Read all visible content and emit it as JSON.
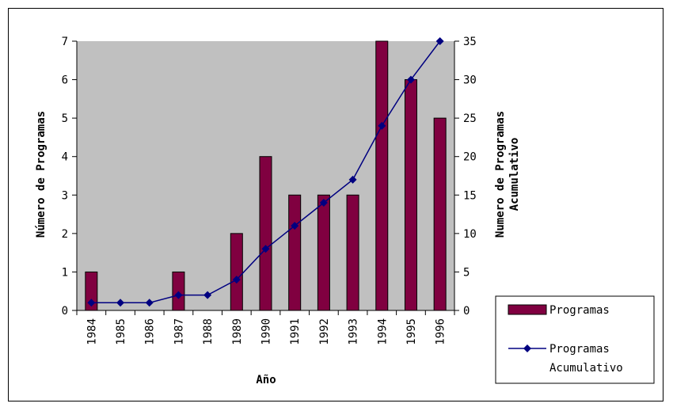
{
  "chart_data": {
    "type": "bar",
    "categories": [
      "1984",
      "1985",
      "1986",
      "1987",
      "1988",
      "1989",
      "1990",
      "1991",
      "1992",
      "1993",
      "1994",
      "1995",
      "1996"
    ],
    "series": [
      {
        "name": "Programas",
        "type": "bar",
        "axis": "left",
        "values": [
          1,
          0,
          0,
          1,
          0,
          2,
          4,
          3,
          3,
          3,
          7,
          6,
          5
        ]
      },
      {
        "name": "Programas Acumulativo",
        "type": "line",
        "axis": "right",
        "values": [
          1,
          1,
          1,
          2,
          2,
          4,
          8,
          11,
          14,
          17,
          24,
          30,
          35
        ]
      }
    ],
    "xlabel": "Año",
    "ylabel": "Número de Programas",
    "y2label_lines": [
      "Numero de Programas",
      "Acumulativo"
    ],
    "ylim": [
      0,
      7
    ],
    "y2lim": [
      0,
      35
    ],
    "yticks": [
      "0",
      "1",
      "2",
      "3",
      "4",
      "5",
      "6",
      "7"
    ],
    "y2ticks": [
      "0",
      "5",
      "10",
      "15",
      "20",
      "25",
      "30",
      "35"
    ],
    "legend": {
      "position": "right",
      "items": [
        {
          "label": "Programas"
        },
        {
          "label_lines": [
            "Programas",
            "Acumulativo"
          ]
        }
      ]
    },
    "colors": {
      "plot_background": "#c0c0c0",
      "bar_fill": "#800040",
      "line": "#000080"
    }
  }
}
